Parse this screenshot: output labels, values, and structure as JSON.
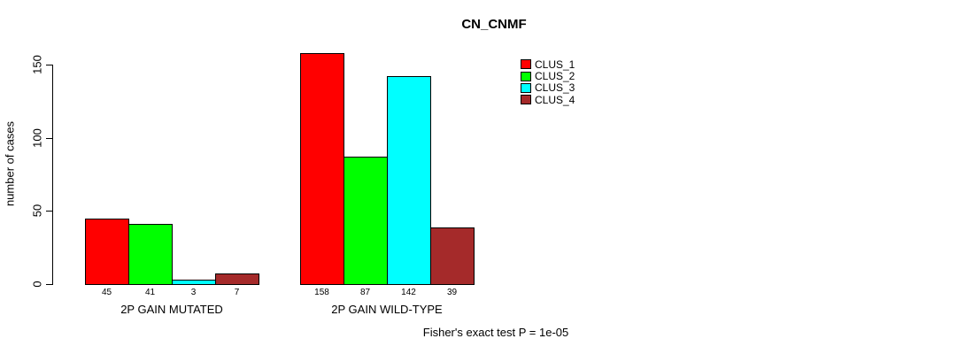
{
  "chart_data": {
    "type": "bar",
    "title": "CN_CNMF",
    "xlabel": "",
    "ylabel": "number of cases",
    "ylim": [
      0,
      150
    ],
    "yticks": [
      0,
      50,
      100,
      150
    ],
    "grid": false,
    "legend_position": "top-right",
    "groups": [
      "2P GAIN MUTATED",
      "2P GAIN WILD-TYPE"
    ],
    "series": [
      {
        "name": "CLUS_1",
        "color": "#ff0000",
        "values": [
          45,
          158
        ]
      },
      {
        "name": "CLUS_2",
        "color": "#00ff00",
        "values": [
          41,
          87
        ]
      },
      {
        "name": "CLUS_3",
        "color": "#00ffff",
        "values": [
          3,
          142
        ]
      },
      {
        "name": "CLUS_4",
        "color": "#a52a2a",
        "values": [
          7,
          39
        ]
      }
    ],
    "bar_value_labels_shown": true,
    "annotation": "Fisher's exact test P = 1e-05"
  }
}
